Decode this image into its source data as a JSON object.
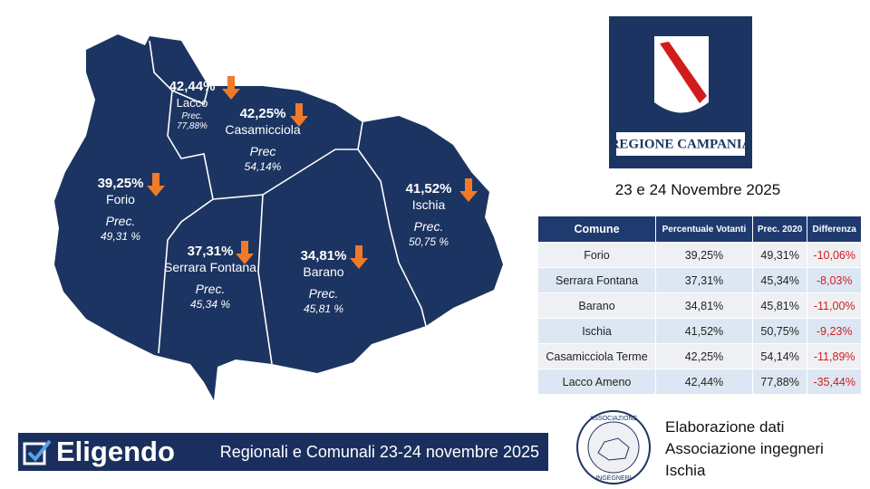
{
  "map": {
    "areas": [
      {
        "turnout": "42,44%",
        "name": "Lacco",
        "prec_label": "Prec.",
        "prec": "77,88%"
      },
      {
        "turnout": "42,25%",
        "name": "Casamicciola",
        "prec_label": "Prec",
        "prec": "54,14%"
      },
      {
        "turnout": "39,25%",
        "name": "Forio",
        "prec_label": "Prec.",
        "prec": "49,31 %"
      },
      {
        "turnout": "37,31%",
        "name": "Serrara Fontana",
        "prec_label": "Prec.",
        "prec": "45,34 %"
      },
      {
        "turnout": "34,81%",
        "name": "Barano",
        "prec_label": "Prec.",
        "prec": "45,81 %"
      },
      {
        "turnout": "41,52%",
        "name": "Ischia",
        "prec_label": "Prec.",
        "prec": "50,75 %"
      }
    ]
  },
  "logo": {
    "text": "REGIONE CAMPANIA"
  },
  "date": "23 e 24 Novembre 2025",
  "table": {
    "header": [
      "Comune",
      "Percentuale Votanti",
      "Prec. 2020",
      "Differenza"
    ],
    "rows": [
      [
        "Forio",
        "39,25%",
        "49,31%",
        "-10,06%"
      ],
      [
        "Serrara Fontana",
        "37,31%",
        "45,34%",
        "-8,03%"
      ],
      [
        "Barano",
        "34,81%",
        "45,81%",
        "-11,00%"
      ],
      [
        "Ischia",
        "41,52%",
        "50,75%",
        "-9,23%"
      ],
      [
        "Casamicciola Terme",
        "42,25%",
        "54,14%",
        "-11,89%"
      ],
      [
        "Lacco Ameno",
        "42,44%",
        "77,88%",
        "-35,44%"
      ]
    ]
  },
  "footer": {
    "brand": "Eligendo",
    "subtitle": "Regionali e Comunali 23-24 novembre 2025"
  },
  "credits": {
    "seal_top": "ASSOCIAZIONE",
    "seal_bottom": "INGEGNERI",
    "lines": [
      "Elaborazione dati",
      "Associazione ingegneri",
      "Ischia"
    ]
  }
}
